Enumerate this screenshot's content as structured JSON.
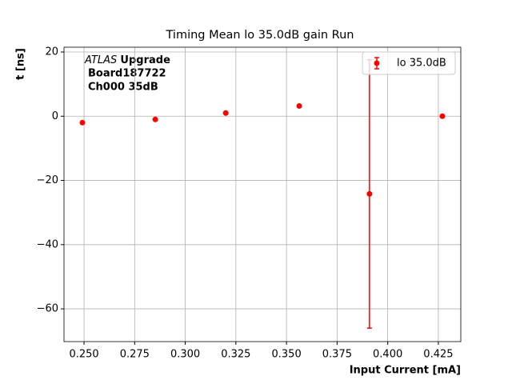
{
  "chart_data": {
    "type": "errorbar",
    "title": "Timing Mean lo 35.0dB gain Run",
    "xlabel": "Input Current [mA]",
    "ylabel": "t [ns]",
    "annotation": {
      "italic": "ATLAS",
      "bold": "Upgrade",
      "lines": [
        "Board187722",
        "Ch000 35dB"
      ]
    },
    "series": [
      {
        "name": "lo 35.0dB",
        "color": "#ff0000",
        "x": [
          0.2492,
          0.2852,
          0.32,
          0.3563,
          0.391,
          0.427
        ],
        "values": [
          -2,
          -1,
          1,
          3.2,
          -24.2,
          0
        ],
        "errors": [
          0,
          0,
          0,
          0,
          41.8,
          0
        ]
      }
    ],
    "xlim": [
      0.2401,
      0.4361
    ],
    "xticks": [
      {
        "value": 0.25,
        "label": "0.250"
      },
      {
        "value": 0.275,
        "label": "0.275"
      },
      {
        "value": 0.3,
        "label": "0.300"
      },
      {
        "value": 0.325,
        "label": "0.325"
      },
      {
        "value": 0.35,
        "label": "0.350"
      },
      {
        "value": 0.375,
        "label": "0.375"
      },
      {
        "value": 0.4,
        "label": "0.400"
      },
      {
        "value": 0.425,
        "label": "0.425"
      }
    ],
    "ylim": [
      -70.2,
      21.5
    ],
    "yticks": [
      {
        "value": -60,
        "label": "−60"
      },
      {
        "value": -40,
        "label": "−40"
      },
      {
        "value": -20,
        "label": "−20"
      },
      0,
      20
    ],
    "grid": true,
    "legend": "upper right"
  }
}
